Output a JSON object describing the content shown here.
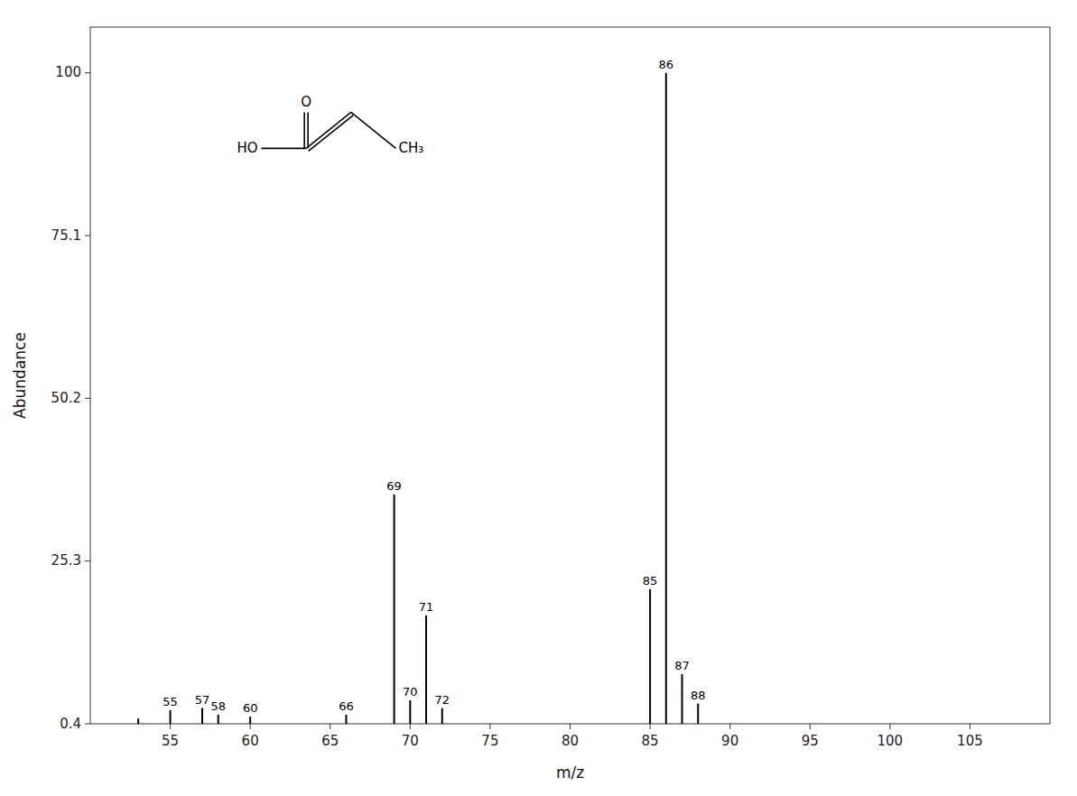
{
  "chart_data": {
    "type": "stem",
    "xlabel": "m/z",
    "ylabel": "Abundance",
    "x": [
      53,
      55,
      57,
      58,
      60,
      66,
      69,
      70,
      71,
      72,
      85,
      86,
      87,
      88
    ],
    "values": [
      1.2,
      2.5,
      2.8,
      1.8,
      1.5,
      1.8,
      35.5,
      4.0,
      17.0,
      2.8,
      21.0,
      100.0,
      8.0,
      3.5
    ],
    "point_labels": [
      null,
      "55",
      "57",
      "58",
      "60",
      "66",
      "69",
      "70",
      "71",
      "72",
      "85",
      "86",
      "87",
      "88"
    ],
    "xlim": [
      50,
      110
    ],
    "ylim": [
      0.4,
      107
    ],
    "xticks": [
      55,
      60,
      65,
      70,
      75,
      80,
      85,
      90,
      95,
      100,
      105
    ],
    "yticks": [
      0.4,
      25.3,
      50.2,
      75.1,
      100
    ],
    "annotations": [
      "O",
      "HO",
      "CH₃"
    ],
    "color": "#000000",
    "grid": false
  }
}
